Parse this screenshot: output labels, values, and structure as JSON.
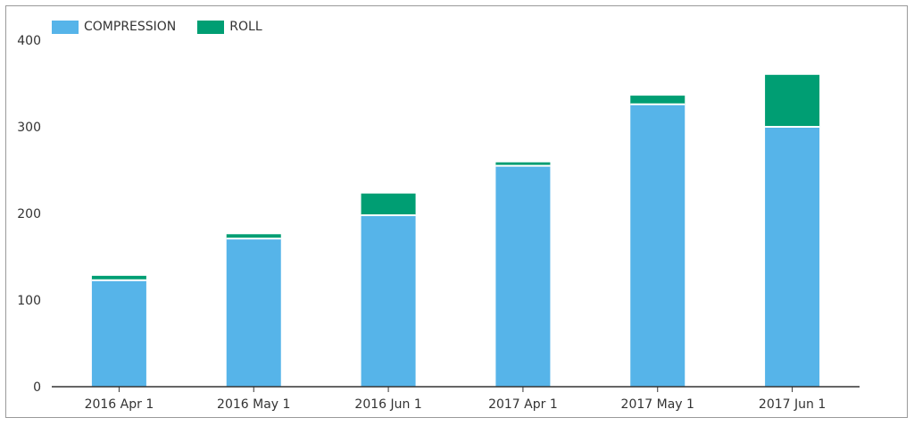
{
  "chart_data": {
    "type": "bar",
    "stacked": true,
    "categories": [
      "2016 Apr 1",
      "2016 May 1",
      "2016 Jun 1",
      "2017 Apr 1",
      "2017 May 1",
      "2017 Jun 1"
    ],
    "series": [
      {
        "name": "COMPRESSION",
        "color": "#56b4e9",
        "values": [
          123,
          171,
          198,
          255,
          326,
          300
        ]
      },
      {
        "name": "ROLL",
        "color": "#009e73",
        "values": [
          5,
          5,
          25,
          4,
          10,
          60
        ]
      }
    ],
    "ylim": [
      0,
      400
    ],
    "yticks": [
      0,
      100,
      200,
      300,
      400
    ],
    "grid": false,
    "legend_position": "top-left"
  }
}
